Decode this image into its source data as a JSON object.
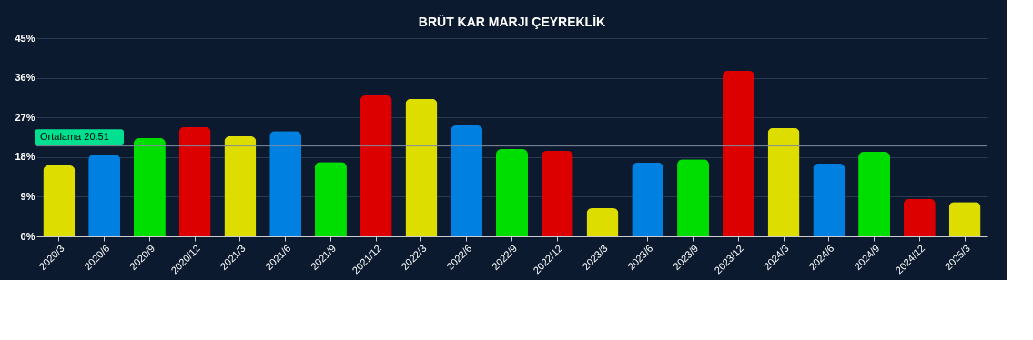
{
  "chart_data": {
    "type": "bar",
    "title": "BRÜT KAR MARJI ÇEYREKLİK",
    "categories": [
      "2020/3",
      "2020/6",
      "2020/9",
      "2020/12",
      "2021/3",
      "2021/6",
      "2021/9",
      "2021/12",
      "2022/3",
      "2022/6",
      "2022/9",
      "2022/12",
      "2023/3",
      "2023/6",
      "2023/9",
      "2023/12",
      "2024/3",
      "2024/6",
      "2024/9",
      "2024/12",
      "2025/3"
    ],
    "values": [
      16.1,
      18.6,
      22.3,
      24.8,
      22.7,
      23.9,
      16.9,
      32.0,
      31.2,
      25.2,
      19.8,
      19.4,
      6.4,
      16.7,
      17.5,
      37.6,
      24.6,
      16.5,
      19.2,
      8.5,
      7.8
    ],
    "colors": [
      "#dddd00",
      "#0080e0",
      "#00dd00",
      "#dd0000",
      "#dddd00",
      "#0080e0",
      "#00dd00",
      "#dd0000",
      "#dddd00",
      "#0080e0",
      "#00dd00",
      "#dd0000",
      "#dddd00",
      "#0080e0",
      "#00dd00",
      "#dd0000",
      "#dddd00",
      "#0080e0",
      "#00dd00",
      "#dd0000",
      "#dddd00"
    ],
    "ylim": [
      0,
      45
    ],
    "yticks": [
      {
        "value": 0,
        "label": "0%"
      },
      {
        "value": 9,
        "label": "9%"
      },
      {
        "value": 18,
        "label": "18%"
      },
      {
        "value": 27,
        "label": "27%"
      },
      {
        "value": 36,
        "label": "36%"
      },
      {
        "value": 45,
        "label": "45%"
      }
    ],
    "grid": "y",
    "ref_lines": [
      {
        "axis": "y",
        "value": 20.51,
        "label": "Ortalama 20.51",
        "color": "#7f8c9c"
      }
    ]
  }
}
